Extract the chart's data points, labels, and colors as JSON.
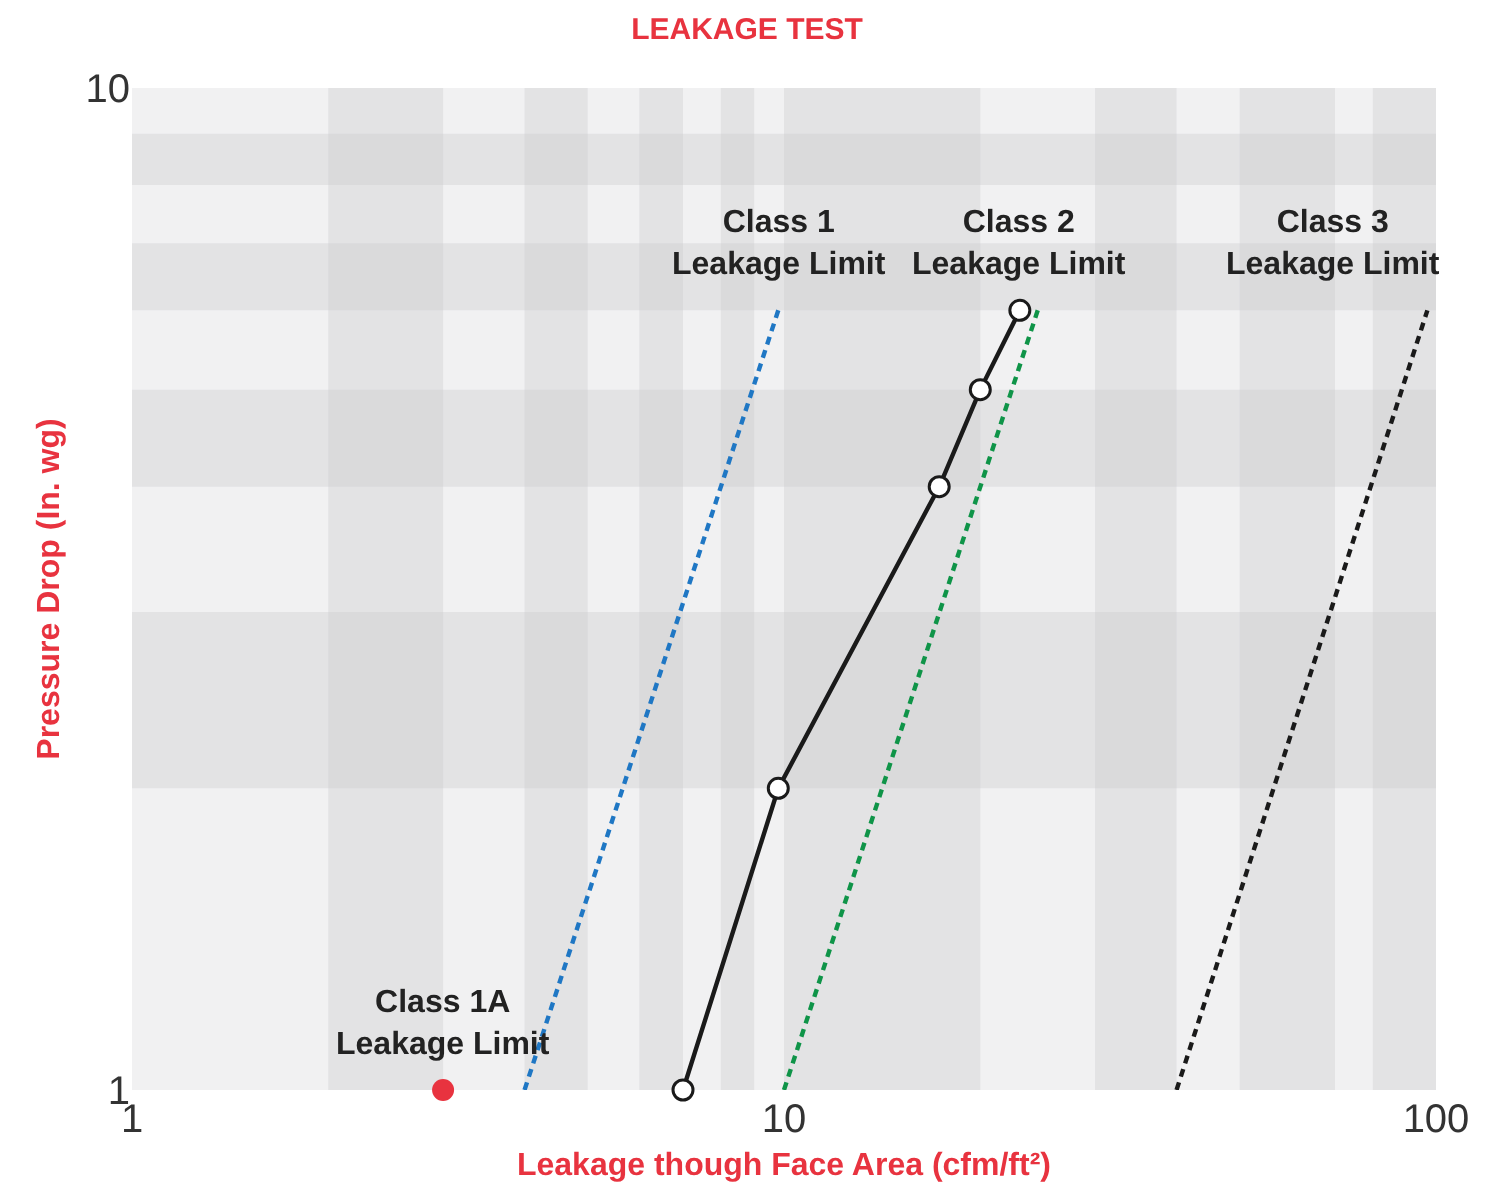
{
  "chart_data": {
    "type": "line",
    "title": "LEAKAGE TEST",
    "xlabel": "Leakage though Face Area (cfm/ft²)",
    "ylabel": "Pressure Drop (In. wg)",
    "log": "xy",
    "xlim": [
      1,
      100
    ],
    "ylim": [
      1,
      10
    ],
    "xticks": [
      1,
      10,
      100
    ],
    "yticks": [
      1,
      10
    ],
    "grid": false,
    "legend": false,
    "series": [
      {
        "color": "#1a1a1a",
        "marker": "circle",
        "line_style": "solid",
        "x": [
          7,
          9.8,
          17.3,
          20,
          23
        ],
        "values": [
          1,
          2,
          4,
          5,
          6
        ]
      },
      {
        "color": "#1f77c4",
        "marker": "none",
        "line_style": "dashed",
        "x": [
          4,
          9.8
        ],
        "values": [
          1,
          6
        ]
      },
      {
        "color": "#0f9448",
        "marker": "none",
        "line_style": "dashed",
        "x": [
          10,
          24.5
        ],
        "values": [
          1,
          6
        ]
      },
      {
        "color": "#1a1a1a",
        "marker": "none",
        "line_style": "dashed",
        "x": [
          40,
          97
        ],
        "values": [
          1,
          6
        ]
      },
      {
        "type": "scatter",
        "color": "#e8333f",
        "marker": "circle",
        "x": [
          3
        ],
        "values": [
          1
        ]
      }
    ],
    "bands": [
      {
        "axis": "x",
        "from": 2,
        "to": 3,
        "color": "#c8c8cc"
      },
      {
        "axis": "x",
        "from": 4,
        "to": 5,
        "color": "#c8c8cc"
      },
      {
        "axis": "x",
        "from": 6,
        "to": 7,
        "color": "#c8c8cc"
      },
      {
        "axis": "x",
        "from": 8,
        "to": 9,
        "color": "#c8c8cc"
      },
      {
        "axis": "x",
        "from": 10,
        "to": 20,
        "color": "#c8c8cc"
      },
      {
        "axis": "x",
        "from": 30,
        "to": 40,
        "color": "#c8c8cc"
      },
      {
        "axis": "x",
        "from": 50,
        "to": 70,
        "color": "#c8c8cc"
      },
      {
        "axis": "x",
        "from": 80,
        "to": 100,
        "color": "#c8c8cc"
      },
      {
        "axis": "y",
        "from": 2,
        "to": 3,
        "color": "#c8c8cc"
      },
      {
        "axis": "y",
        "from": 4,
        "to": 5,
        "color": "#c8c8cc"
      },
      {
        "axis": "y",
        "from": 6,
        "to": 7,
        "color": "#c8c8cc"
      },
      {
        "axis": "y",
        "from": 8,
        "to": 9,
        "color": "#c8c8cc"
      }
    ],
    "annotations": [
      {
        "text": "Class 1\nLeakage Limit",
        "x": 9.8,
        "y": 6
      },
      {
        "text": "Class 2\nLeakage Limit",
        "x": 23,
        "y": 6
      },
      {
        "text": "Class 3\nLeakage Limit",
        "x": 97,
        "y": 6
      },
      {
        "text": "Class 1A\nLeakage Limit",
        "x": 3,
        "y": 1
      }
    ]
  }
}
